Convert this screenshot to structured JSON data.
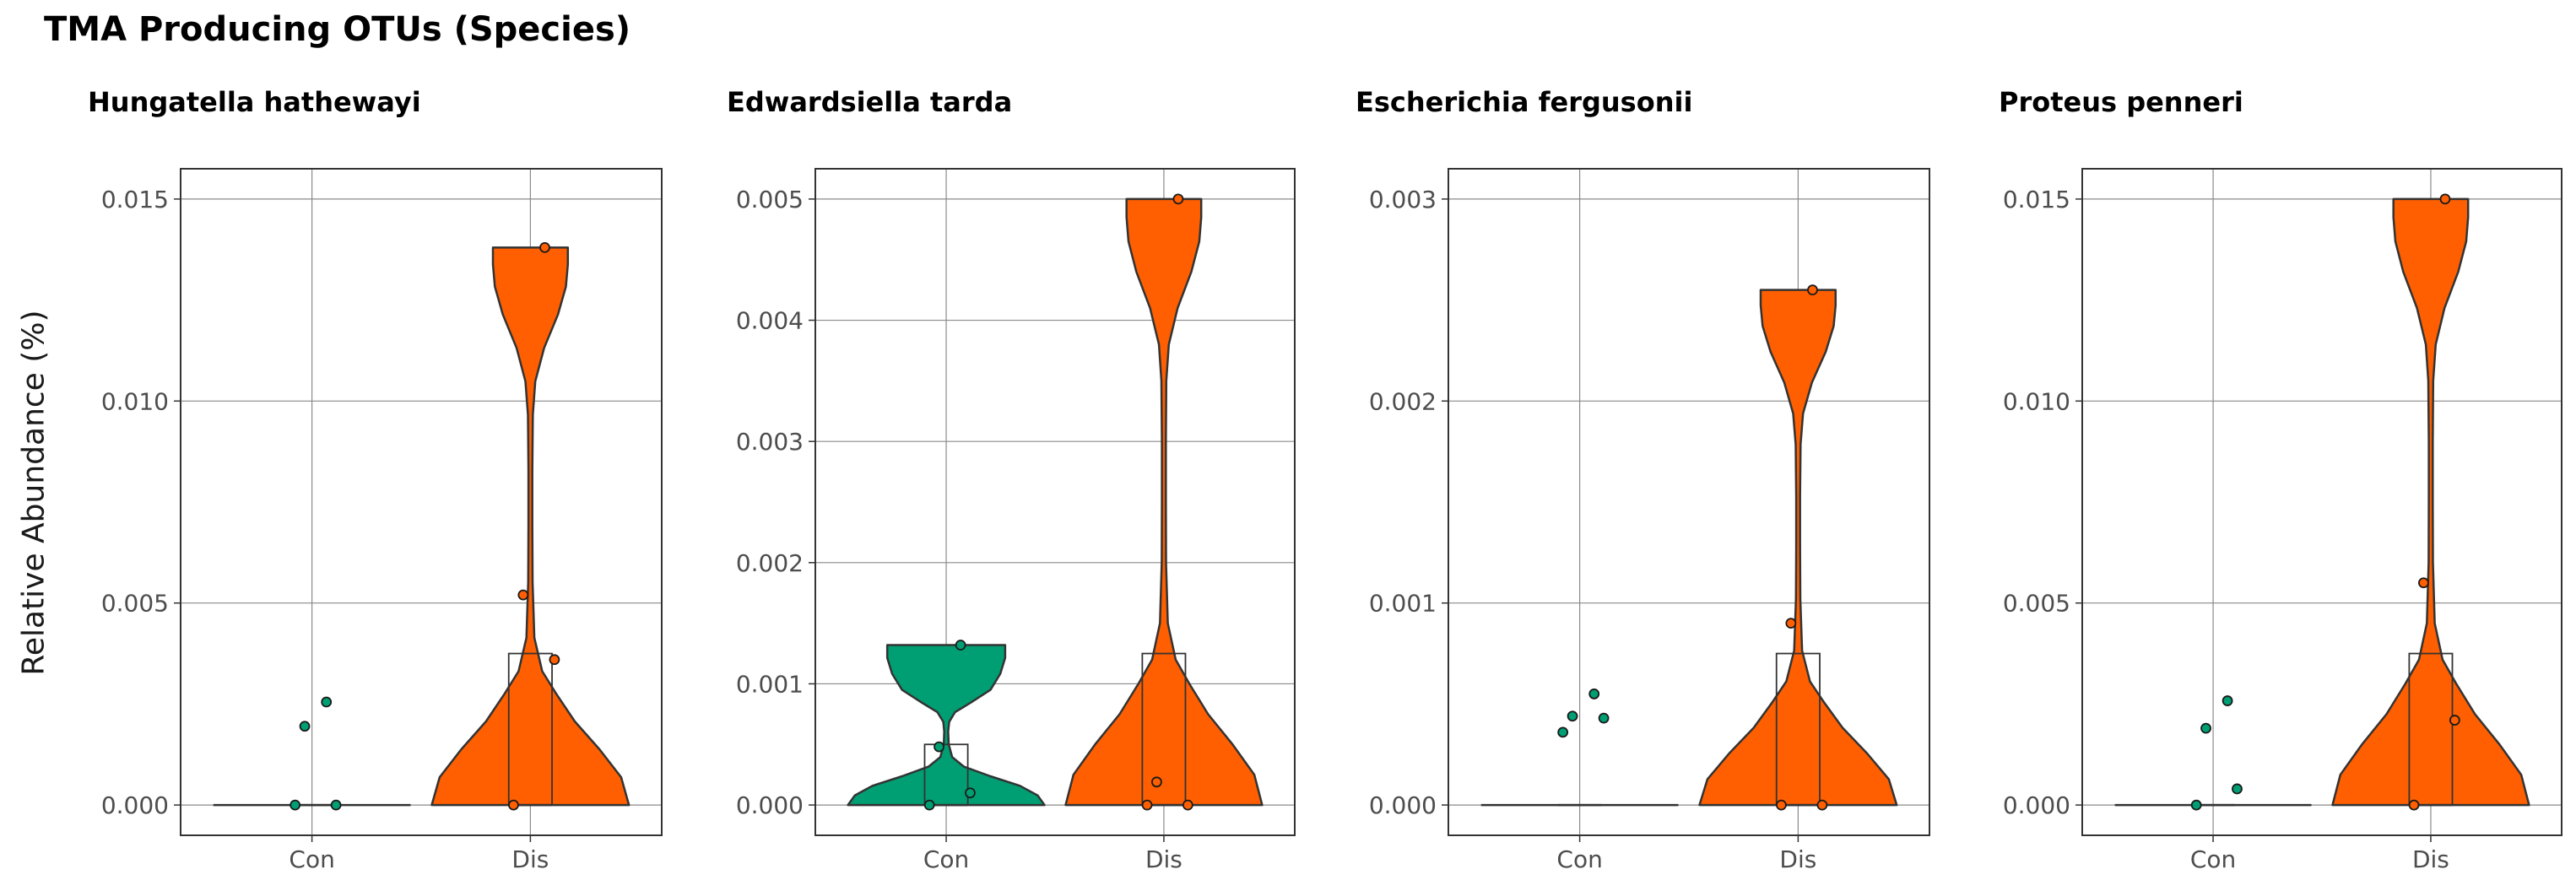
{
  "figure": {
    "title": "TMA Producing OTUs (Species)",
    "ylabel": "Relative Abundance (%)"
  },
  "colors": {
    "Con": "#009E73",
    "Dis": "#FF5F00",
    "outline": "#333333",
    "grid": "#8a8a8a"
  },
  "chart_data": [
    {
      "type": "violin",
      "title": "Hungatella hathewayi",
      "categories": [
        "Con",
        "Dis"
      ],
      "ylim": [
        -0.00075,
        0.01575
      ],
      "yticks": [
        0.0,
        0.005,
        0.01,
        0.015
      ],
      "ytick_labels": [
        "0.000",
        "0.005",
        "0.010",
        "0.015"
      ],
      "groups": [
        {
          "name": "Con",
          "box": {
            "q1": 0.0,
            "median": 0.0,
            "q3": 0.0
          },
          "points": [
            0.0,
            0.0,
            0.00195,
            0.00255
          ]
        },
        {
          "name": "Dis",
          "box": {
            "q1": 0.0,
            "median": 0.0,
            "q3": 0.00375
          },
          "points": [
            0.0,
            0.0036,
            0.0052,
            0.0138
          ]
        }
      ]
    },
    {
      "type": "violin",
      "title": "Edwardsiella tarda",
      "categories": [
        "Con",
        "Dis"
      ],
      "ylim": [
        -0.00025,
        0.00525
      ],
      "yticks": [
        0.0,
        0.001,
        0.002,
        0.003,
        0.004,
        0.005
      ],
      "ytick_labels": [
        "0.000",
        "0.001",
        "0.002",
        "0.003",
        "0.004",
        "0.005"
      ],
      "groups": [
        {
          "name": "Con",
          "box": {
            "q1": 0.0,
            "median": 0.0,
            "q3": 0.0005
          },
          "points": [
            0.0,
            0.0001,
            0.00048,
            0.00132
          ]
        },
        {
          "name": "Dis",
          "box": {
            "q1": 0.0,
            "median": 0.0,
            "q3": 0.00125
          },
          "points": [
            0.0,
            0.0,
            0.00019,
            0.005
          ]
        }
      ]
    },
    {
      "type": "violin",
      "title": "Escherichia fergusonii",
      "categories": [
        "Con",
        "Dis"
      ],
      "ylim": [
        -0.00015,
        0.00315
      ],
      "yticks": [
        0.0,
        0.001,
        0.002,
        0.003
      ],
      "ytick_labels": [
        "0.000",
        "0.001",
        "0.002",
        "0.003"
      ],
      "groups": [
        {
          "name": "Con",
          "box": {
            "q1": 0.0,
            "median": 0.0,
            "q3": 0.0
          },
          "points": [
            0.00036,
            0.00043,
            0.00044,
            0.00055
          ]
        },
        {
          "name": "Dis",
          "box": {
            "q1": 0.0,
            "median": 0.0,
            "q3": 0.00075
          },
          "points": [
            0.0,
            0.0,
            0.0009,
            0.00255
          ]
        }
      ]
    },
    {
      "type": "violin",
      "title": "Proteus penneri",
      "categories": [
        "Con",
        "Dis"
      ],
      "ylim": [
        -0.00075,
        0.01575
      ],
      "yticks": [
        0.0,
        0.005,
        0.01,
        0.015
      ],
      "ytick_labels": [
        "0.000",
        "0.005",
        "0.010",
        "0.015"
      ],
      "groups": [
        {
          "name": "Con",
          "box": {
            "q1": 0.0,
            "median": 0.0,
            "q3": 0.0
          },
          "points": [
            0.0,
            0.0004,
            0.0019,
            0.00258
          ]
        },
        {
          "name": "Dis",
          "box": {
            "q1": 0.0,
            "median": 0.0,
            "q3": 0.00375
          },
          "points": [
            0.0,
            0.0021,
            0.0055,
            0.015
          ]
        }
      ]
    }
  ]
}
